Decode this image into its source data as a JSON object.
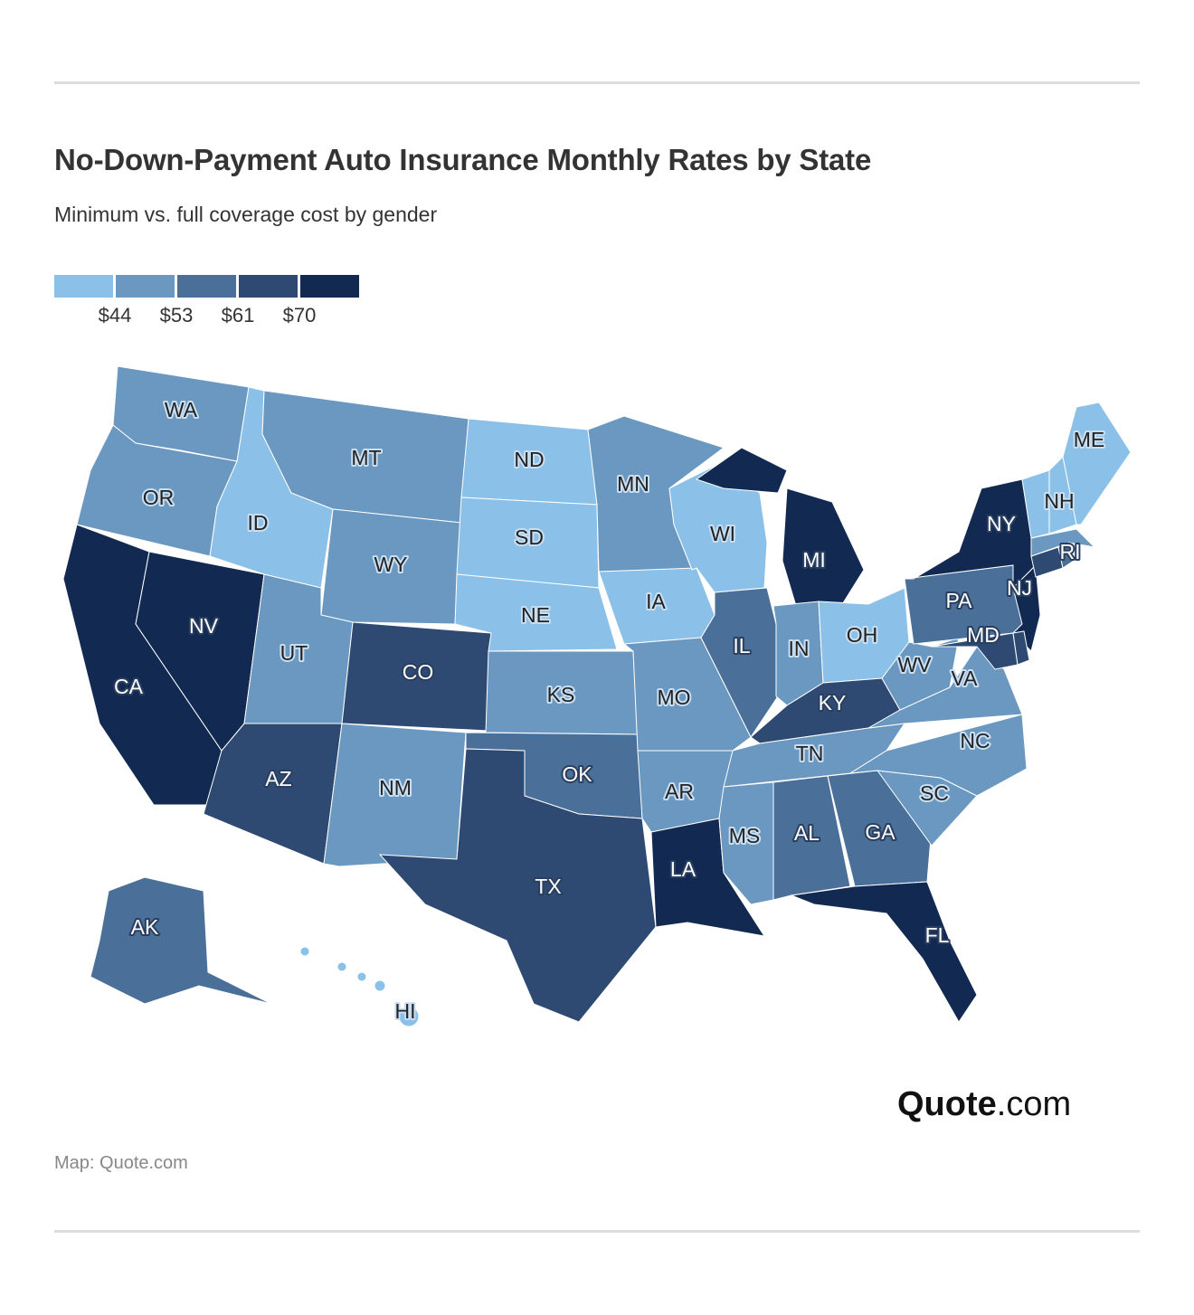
{
  "header": {
    "title": "No-Down-Payment Auto Insurance Monthly Rates by State",
    "subtitle": "Minimum vs. full coverage cost by gender"
  },
  "chart_data": {
    "type": "choropleth",
    "title": "No-Down-Payment Auto Insurance Monthly Rates by State",
    "subtitle": "Minimum vs. full coverage cost by gender",
    "legend": {
      "placement": "top-left",
      "thresholds": [
        "$44",
        "$53",
        "$61",
        "$70"
      ],
      "colors": [
        "#8bc1e8",
        "#6a98c0",
        "#4a6f98",
        "#2e4a72",
        "#122a52"
      ]
    },
    "states": [
      {
        "code": "WA",
        "bin": 1
      },
      {
        "code": "OR",
        "bin": 1
      },
      {
        "code": "CA",
        "bin": 4
      },
      {
        "code": "NV",
        "bin": 4
      },
      {
        "code": "ID",
        "bin": 0
      },
      {
        "code": "MT",
        "bin": 1
      },
      {
        "code": "WY",
        "bin": 1
      },
      {
        "code": "UT",
        "bin": 1
      },
      {
        "code": "AZ",
        "bin": 3
      },
      {
        "code": "CO",
        "bin": 3
      },
      {
        "code": "NM",
        "bin": 1
      },
      {
        "code": "ND",
        "bin": 0
      },
      {
        "code": "SD",
        "bin": 0
      },
      {
        "code": "NE",
        "bin": 0
      },
      {
        "code": "KS",
        "bin": 1
      },
      {
        "code": "OK",
        "bin": 2
      },
      {
        "code": "TX",
        "bin": 3
      },
      {
        "code": "MN",
        "bin": 1
      },
      {
        "code": "IA",
        "bin": 0
      },
      {
        "code": "MO",
        "bin": 1
      },
      {
        "code": "AR",
        "bin": 1
      },
      {
        "code": "LA",
        "bin": 4
      },
      {
        "code": "WI",
        "bin": 0
      },
      {
        "code": "IL",
        "bin": 2
      },
      {
        "code": "MI",
        "bin": 4
      },
      {
        "code": "IN",
        "bin": 1
      },
      {
        "code": "OH",
        "bin": 0
      },
      {
        "code": "KY",
        "bin": 3
      },
      {
        "code": "TN",
        "bin": 1
      },
      {
        "code": "MS",
        "bin": 1
      },
      {
        "code": "AL",
        "bin": 2
      },
      {
        "code": "GA",
        "bin": 2
      },
      {
        "code": "FL",
        "bin": 4
      },
      {
        "code": "SC",
        "bin": 1
      },
      {
        "code": "NC",
        "bin": 1
      },
      {
        "code": "VA",
        "bin": 1
      },
      {
        "code": "WV",
        "bin": 1
      },
      {
        "code": "PA",
        "bin": 2
      },
      {
        "code": "NY",
        "bin": 4
      },
      {
        "code": "NJ",
        "bin": 4
      },
      {
        "code": "MD",
        "bin": 3
      },
      {
        "code": "DE",
        "bin": 3
      },
      {
        "code": "CT",
        "bin": 3
      },
      {
        "code": "RI",
        "bin": 2
      },
      {
        "code": "MA",
        "bin": 1
      },
      {
        "code": "VT",
        "bin": 0
      },
      {
        "code": "NH",
        "bin": 0
      },
      {
        "code": "ME",
        "bin": 0
      },
      {
        "code": "AK",
        "bin": 2
      },
      {
        "code": "HI",
        "bin": 0
      }
    ]
  },
  "footer": {
    "logo_bold": "Quote",
    "logo_rest": ".com",
    "source": "Map: Quote.com"
  }
}
